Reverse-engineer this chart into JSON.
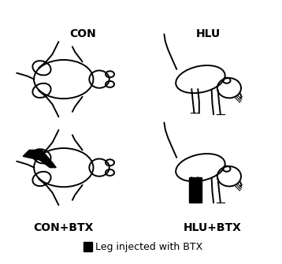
{
  "labels": [
    "CON",
    "HLU",
    "CON+BTX",
    "HLU+BTX"
  ],
  "legend_text": "Leg injected with BTX",
  "background_color": "#ffffff",
  "text_color": "#000000",
  "label_fontsize": 10,
  "legend_fontsize": 9,
  "fig_width": 3.58,
  "fig_height": 3.35,
  "dpi": 100
}
